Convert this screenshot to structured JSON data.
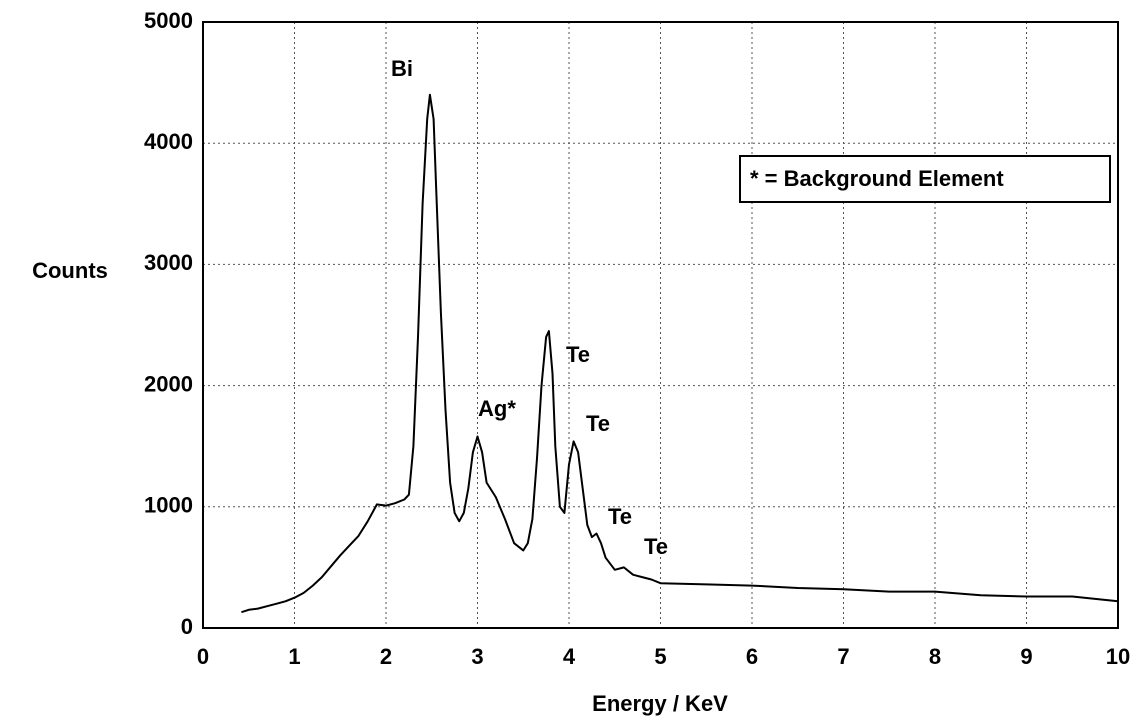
{
  "chart_data": {
    "type": "line",
    "x_label": "Energy / KeV",
    "y_label": "Counts",
    "color": "#000000",
    "grid": true,
    "xlim": [
      0,
      10
    ],
    "xticks": [
      0,
      1,
      2,
      3,
      4,
      5,
      6,
      7,
      8,
      9,
      10
    ],
    "ylim": [
      0,
      5000
    ],
    "yticks": [
      0,
      1000,
      2000,
      3000,
      4000,
      5000
    ],
    "annotations": [
      "Bi",
      "Ag*",
      "Te",
      "Te",
      "Te",
      "Te"
    ],
    "legend_note": "* = Background Element",
    "x": [
      0.42,
      0.5,
      0.6,
      0.7,
      0.8,
      0.9,
      1.0,
      1.1,
      1.2,
      1.3,
      1.4,
      1.5,
      1.6,
      1.7,
      1.8,
      1.9,
      2.0,
      2.1,
      2.2,
      2.25,
      2.3,
      2.35,
      2.4,
      2.45,
      2.48,
      2.52,
      2.55,
      2.6,
      2.65,
      2.7,
      2.75,
      2.8,
      2.85,
      2.9,
      2.95,
      3.0,
      3.05,
      3.1,
      3.2,
      3.3,
      3.4,
      3.5,
      3.55,
      3.6,
      3.65,
      3.7,
      3.75,
      3.78,
      3.82,
      3.85,
      3.9,
      3.95,
      4.0,
      4.05,
      4.1,
      4.15,
      4.2,
      4.25,
      4.3,
      4.35,
      4.4,
      4.5,
      4.6,
      4.7,
      4.8,
      4.9,
      5.0,
      5.5,
      6.0,
      6.5,
      7.0,
      7.5,
      8.0,
      8.5,
      9.0,
      9.5,
      10.0
    ],
    "values": [
      130,
      150,
      160,
      180,
      200,
      220,
      250,
      290,
      350,
      420,
      510,
      600,
      680,
      760,
      880,
      1020,
      1010,
      1030,
      1060,
      1100,
      1500,
      2400,
      3500,
      4200,
      4400,
      4200,
      3600,
      2600,
      1800,
      1200,
      950,
      880,
      950,
      1150,
      1450,
      1580,
      1450,
      1200,
      1080,
      900,
      700,
      640,
      700,
      900,
      1400,
      2000,
      2400,
      2450,
      2100,
      1500,
      1000,
      950,
      1350,
      1540,
      1450,
      1150,
      850,
      750,
      780,
      700,
      580,
      480,
      500,
      440,
      420,
      400,
      370,
      360,
      350,
      330,
      320,
      300,
      300,
      270,
      260,
      260,
      220
    ]
  }
}
